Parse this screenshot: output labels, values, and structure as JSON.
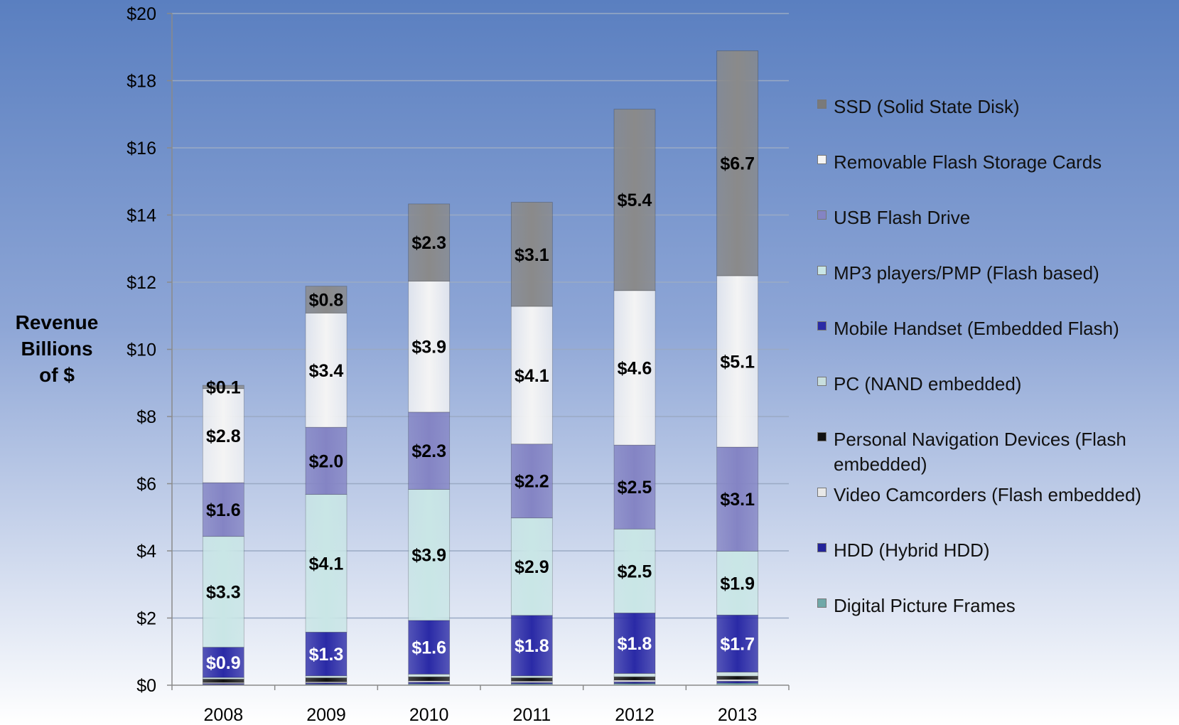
{
  "chart_data": {
    "type": "bar",
    "stacked": true,
    "title": "",
    "ylabel": "Revenue Billions of $",
    "xlabel": "",
    "ylim": [
      0,
      20
    ],
    "y_ticks": [
      0,
      2,
      4,
      6,
      8,
      10,
      12,
      14,
      16,
      18,
      20
    ],
    "y_tick_labels": [
      "$0",
      "$2",
      "$4",
      "$6",
      "$8",
      "$10",
      "$12",
      "$14",
      "$16",
      "$18",
      "$20"
    ],
    "grid": true,
    "legend_position": "right",
    "categories": [
      "2008",
      "2009",
      "2010",
      "2011",
      "2012",
      "2013"
    ],
    "series": [
      {
        "name": "Digital Picture Frames",
        "values": [
          0.02,
          0.03,
          0.04,
          0.04,
          0.05,
          0.06
        ],
        "labels": [
          "",
          "",
          "",
          "",
          "",
          ""
        ],
        "color": "#6fa8a8",
        "label_color": "#000000"
      },
      {
        "name": "HDD (Hybrid HDD)",
        "values": [
          0.03,
          0.04,
          0.05,
          0.04,
          0.05,
          0.06
        ],
        "labels": [
          "",
          "",
          "",
          "",
          "",
          ""
        ],
        "color": "#23239a",
        "label_color": "#000000"
      },
      {
        "name": "Video Camcorders (Flash embedded)",
        "values": [
          0.03,
          0.03,
          0.04,
          0.04,
          0.05,
          0.05
        ],
        "labels": [
          "",
          "",
          "",
          "",
          "",
          ""
        ],
        "color": "#e8e8e8",
        "label_color": "#000000"
      },
      {
        "name": "Personal Navigation Devices (Flash embedded)",
        "values": [
          0.1,
          0.12,
          0.12,
          0.1,
          0.1,
          0.1
        ],
        "labels": [
          "",
          "",
          "",
          "",
          "",
          ""
        ],
        "color": "#111111",
        "label_color": "#000000"
      },
      {
        "name": "PC (NAND embedded)",
        "values": [
          0.05,
          0.06,
          0.08,
          0.06,
          0.1,
          0.12
        ],
        "labels": [
          "",
          "",
          "",
          "",
          "",
          ""
        ],
        "color": "#c8dede",
        "label_color": "#000000"
      },
      {
        "name": "Mobile Handset (Embedded Flash)",
        "values": [
          0.9,
          1.3,
          1.6,
          1.8,
          1.8,
          1.7
        ],
        "labels": [
          "$0.9",
          "$1.3",
          "$1.6",
          "$1.8",
          "$1.8",
          "$1.7"
        ],
        "color": "#2a2aa6",
        "label_color": "#ffffff"
      },
      {
        "name": "MP3 players/PMP  (Flash based)",
        "values": [
          3.3,
          4.1,
          3.9,
          2.9,
          2.5,
          1.9
        ],
        "labels": [
          "$3.3",
          "$4.1",
          "$3.9",
          "$2.9",
          "$2.5",
          "$1.9"
        ],
        "color": "#c9e6e6",
        "label_color": "#000000"
      },
      {
        "name": "USB Flash Drive",
        "values": [
          1.6,
          2.0,
          2.3,
          2.2,
          2.5,
          3.1
        ],
        "labels": [
          "$1.6",
          "$2.0",
          "$2.3",
          "$2.2",
          "$2.5",
          "$3.1"
        ],
        "color": "#8484c4",
        "label_color": "#000000"
      },
      {
        "name": "Removable Flash Storage Cards",
        "values": [
          2.8,
          3.4,
          3.9,
          4.1,
          4.6,
          5.1
        ],
        "labels": [
          "$2.8",
          "$3.4",
          "$3.9",
          "$4.1",
          "$4.6",
          "$5.1"
        ],
        "color": "#f4f4f4",
        "label_color": "#000000"
      },
      {
        "name": "SSD (Solid State Disk)",
        "values": [
          0.1,
          0.8,
          2.3,
          3.1,
          5.4,
          6.7
        ],
        "labels": [
          "$0.1",
          "$0.8",
          "$2.3",
          "$3.1",
          "$5.4",
          "$6.7"
        ],
        "color": "#8a8a8a",
        "label_color": "#000000"
      }
    ]
  },
  "legend": [
    {
      "label": "SSD (Solid State Disk)",
      "color": "#7a7a7a"
    },
    {
      "label": "Removable Flash Storage Cards",
      "color": "#f4f4f4"
    },
    {
      "label": "USB Flash Drive",
      "color": "#8484c4"
    },
    {
      "label": "MP3 players/PMP  (Flash based)",
      "color": "#c9e6e6"
    },
    {
      "label": "Mobile Handset (Embedded Flash)",
      "color": "#2a2aa6"
    },
    {
      "label": "PC (NAND embedded)",
      "color": "#c8dede"
    },
    {
      "label": "Personal Navigation Devices (Flash embedded)",
      "color": "#111111"
    },
    {
      "label": "Video Camcorders (Flash embedded)",
      "color": "#e8e8e8"
    },
    {
      "label": "HDD (Hybrid HDD)",
      "color": "#23239a"
    },
    {
      "label": "Digital Picture Frames",
      "color": "#6fa8a8"
    }
  ],
  "ylabel_lines": [
    "Revenue",
    "Billions",
    "of $"
  ]
}
